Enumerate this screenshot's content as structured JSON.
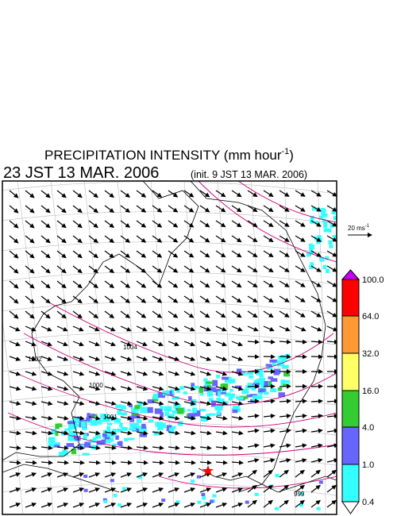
{
  "header": {
    "title": [
      "PRECIPITATION INTENSITY (mm hour",
      "-1",
      ")"
    ],
    "valid_time": "23 JST 13 MAR. 2006",
    "init_time": "(init. 9 JST 13 MAR. 2006)"
  },
  "vector_reference": [
    "20 ms",
    "-1"
  ],
  "colorbar": {
    "labels": [
      "100.0",
      "64.0",
      "32.0",
      "16.0",
      "4.0",
      "1.0",
      "0.4"
    ],
    "colors": [
      "#cc00ff",
      "#ff0000",
      "#ff9933",
      "#ffff66",
      "#33cc33",
      "#6666ff",
      "#33ffff",
      "#ffffff"
    ]
  },
  "contour_labels": [
    "1004",
    "1002",
    "1000",
    "1001",
    "999"
  ]
}
